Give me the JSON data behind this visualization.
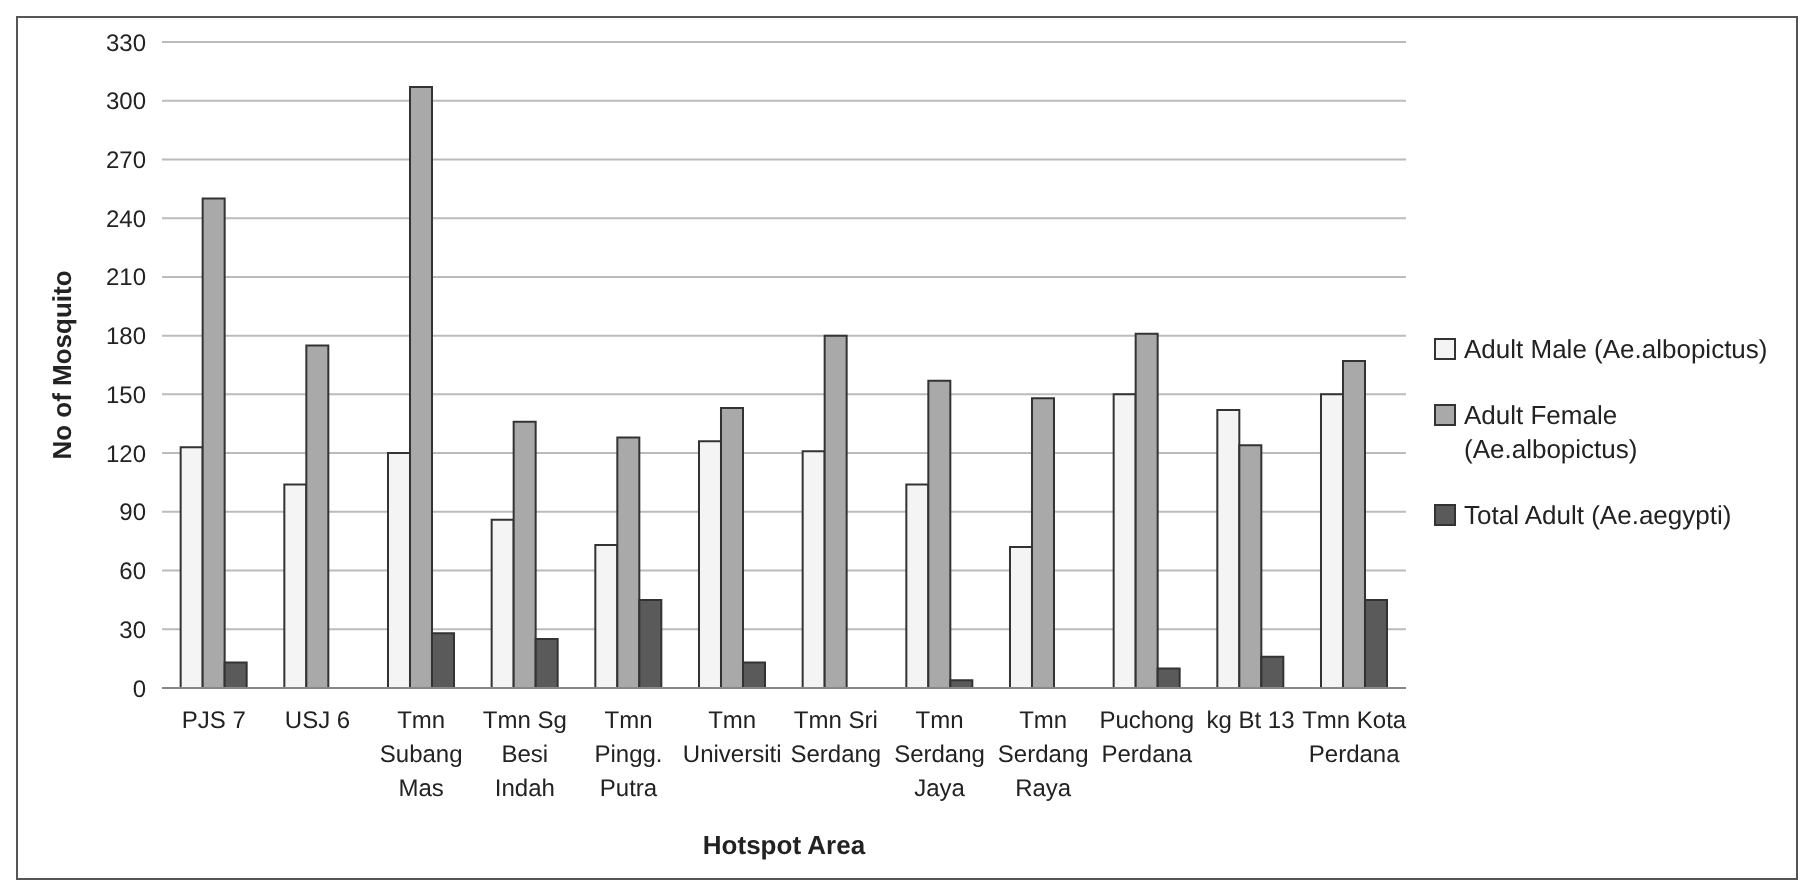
{
  "chart_data": {
    "type": "bar",
    "xlabel": "Hotspot Area",
    "ylabel": "No of Mosquito",
    "categories": [
      "PJS 7",
      "USJ 6",
      "Tmn Subang Mas",
      "Tmn Sg Besi Indah",
      "Tmn Pingg. Putra",
      "Tmn Universiti",
      "Tmn Sri Serdang",
      "Tmn Serdang Jaya",
      "Tmn Serdang Raya",
      "Puchong Perdana",
      "kg Bt 13",
      "Tmn Kota Perdana"
    ],
    "series": [
      {
        "name": "Adult Male (Ae.albopictus)",
        "color": "#f4f4f4",
        "values": [
          123,
          104,
          120,
          86,
          73,
          126,
          121,
          104,
          72,
          150,
          142,
          150
        ]
      },
      {
        "name": "Adult Female (Ae.albopictus)",
        "color": "#a9a9a9",
        "values": [
          250,
          175,
          307,
          136,
          128,
          143,
          180,
          157,
          148,
          181,
          124,
          167
        ]
      },
      {
        "name": "Total Adult (Ae.aegypti)",
        "color": "#5a5a5a",
        "values": [
          13,
          null,
          28,
          25,
          45,
          13,
          null,
          4,
          null,
          10,
          16,
          45
        ]
      }
    ],
    "ylim": [
      0,
      330
    ],
    "yticks": [
      0,
      30,
      60,
      90,
      120,
      150,
      180,
      210,
      240,
      270,
      300,
      330
    ],
    "grid": "y",
    "legend": "right"
  }
}
